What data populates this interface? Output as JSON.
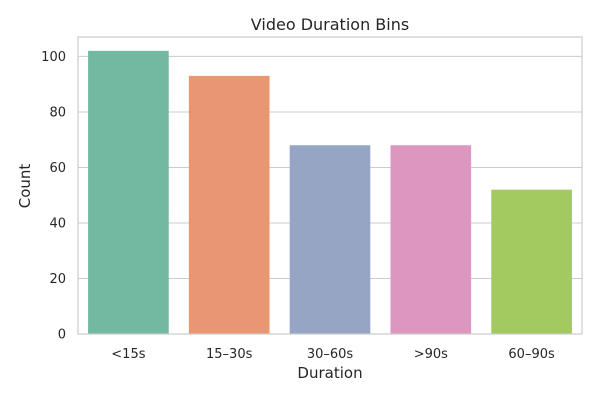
{
  "chart_data": {
    "type": "bar",
    "title": "Video Duration Bins",
    "xlabel": "Duration",
    "ylabel": "Count",
    "categories": [
      "<15s",
      "15–30s",
      "30–60s",
      ">90s",
      "60–90s"
    ],
    "values": [
      102,
      93,
      68,
      68,
      52
    ],
    "colors": [
      "#73b8a0",
      "#e99673",
      "#96a5c4",
      "#dc96c0",
      "#a3ca60"
    ],
    "ylim": [
      0,
      107
    ],
    "yticks": [
      0,
      20,
      40,
      60,
      80,
      100
    ],
    "grid": true,
    "grid_axis": "y",
    "legend": "none"
  }
}
